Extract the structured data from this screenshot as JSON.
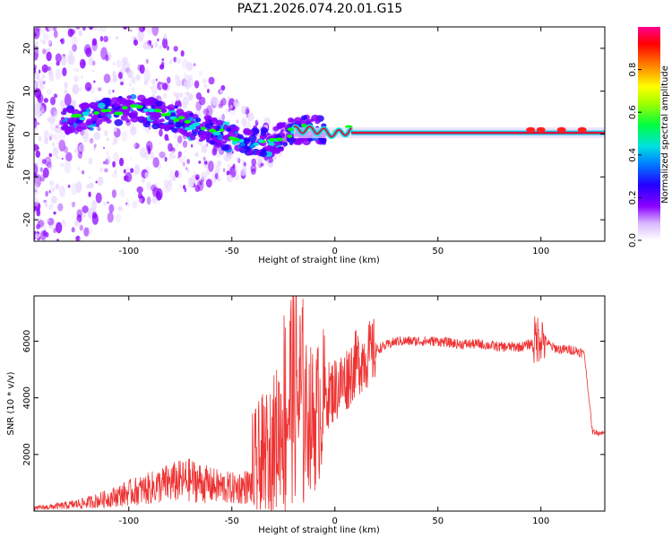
{
  "title": "PAZ1.2026.074.20.01.G15",
  "colors": {
    "snr_line": "#ee3333",
    "spectrogram_ridge": "#e0103a",
    "colormap": [
      "#e8d8ff",
      "#8a00ff",
      "#2200ff",
      "#0080ff",
      "#00e0e0",
      "#00ff00",
      "#ffff00",
      "#ff8000",
      "#ff0000",
      "#ff0090"
    ]
  },
  "chart_data": [
    {
      "type": "heatmap",
      "name": "spectrogram",
      "xlabel": "Height of straight line (km)",
      "ylabel": "Frequency (Hz)",
      "xlim": [
        -146,
        131
      ],
      "ylim": [
        -25,
        25
      ],
      "xticks": [
        -100,
        -50,
        0,
        50,
        100
      ],
      "yticks": [
        -20,
        -10,
        0,
        10,
        20
      ],
      "xtick_labels": [
        "-100",
        "-50",
        "0",
        "50",
        "100"
      ],
      "ytick_labels": [
        "-20",
        "-10",
        "0",
        "10",
        "20"
      ],
      "ridge": {
        "x": [
          -130,
          -120,
          -110,
          -100,
          -90,
          -80,
          -70,
          -60,
          -50,
          -40,
          -30,
          -20,
          -10,
          0,
          10,
          20,
          40,
          60,
          80,
          100,
          120,
          131
        ],
        "y": [
          3,
          4,
          5,
          6,
          5,
          4,
          2,
          1,
          -1,
          -2,
          -2,
          1,
          1,
          0,
          1,
          0,
          0,
          0,
          0.5,
          1,
          1,
          1
        ]
      },
      "description_of_scatter": "diffuse purple scatter broadening for heights below -20 km"
    },
    {
      "type": "colorbar",
      "name": "colorbar",
      "label": "Normalized spectral amplitude",
      "range": [
        0,
        1
      ],
      "ticks": [
        0.0,
        0.2,
        0.4,
        0.6,
        0.8
      ],
      "tick_labels": [
        "0.0",
        "0.2",
        "0.4",
        "0.6",
        "0.8"
      ]
    },
    {
      "type": "line",
      "name": "snr",
      "xlabel": "Height of straight line (km)",
      "ylabel": "SNR (10 * v/v)",
      "xlim": [
        -146,
        131
      ],
      "ylim": [
        0,
        7600
      ],
      "xticks": [
        -100,
        -50,
        0,
        50,
        100
      ],
      "yticks": [
        2000,
        4000,
        6000
      ],
      "xtick_labels": [
        "-100",
        "-50",
        "0",
        "50",
        "100"
      ],
      "ytick_labels": [
        "2000",
        "4000",
        "6000"
      ],
      "series": [
        {
          "name": "SNR",
          "x": [
            -146,
            -130,
            -120,
            -110,
            -100,
            -90,
            -80,
            -70,
            -60,
            -50,
            -40,
            -30,
            -20,
            -15,
            -10,
            -5,
            0,
            5,
            10,
            20,
            30,
            40,
            50,
            60,
            70,
            80,
            90,
            95,
            100,
            105,
            110,
            115,
            120,
            121,
            125,
            131
          ],
          "y": [
            100,
            200,
            300,
            450,
            650,
            800,
            1000,
            1100,
            900,
            800,
            900,
            2200,
            4500,
            3500,
            3200,
            4000,
            4300,
            4600,
            5200,
            5700,
            6000,
            6000,
            6000,
            5900,
            5900,
            5800,
            5800,
            5900,
            6200,
            5800,
            5700,
            5700,
            5600,
            5600,
            2800,
            2750
          ]
        }
      ]
    }
  ]
}
